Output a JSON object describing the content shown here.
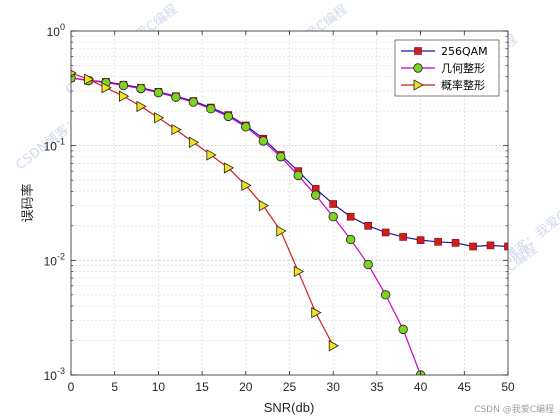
{
  "chart_data": {
    "type": "line",
    "xlabel": "SNR(db)",
    "ylabel": "误码率",
    "xlim": [
      0,
      50
    ],
    "ylim": [
      0.001,
      1
    ],
    "yscale": "log",
    "grid": true,
    "legend_position": "top-right",
    "x_ticks": [
      "0",
      "5",
      "10",
      "15",
      "20",
      "25",
      "30",
      "35",
      "40",
      "45",
      "50"
    ],
    "y_ticks": [
      {
        "base": "10",
        "exp": "0",
        "value": 1
      },
      {
        "base": "10",
        "exp": "-1",
        "value": 0.1
      },
      {
        "base": "10",
        "exp": "-2",
        "value": 0.01
      },
      {
        "base": "10",
        "exp": "-3",
        "value": 0.001
      }
    ],
    "series": [
      {
        "name": "256QAM",
        "color": "#1a1aa6",
        "marker": "square",
        "marker_color": "#cc1f1f",
        "x": [
          0,
          2,
          4,
          6,
          8,
          10,
          12,
          14,
          16,
          18,
          20,
          22,
          24,
          26,
          28,
          30,
          32,
          34,
          36,
          38,
          40,
          42,
          44,
          46,
          48,
          50
        ],
        "y": [
          0.39,
          0.37,
          0.36,
          0.34,
          0.32,
          0.295,
          0.27,
          0.245,
          0.215,
          0.185,
          0.15,
          0.115,
          0.083,
          0.06,
          0.042,
          0.031,
          0.024,
          0.02,
          0.0175,
          0.016,
          0.015,
          0.0145,
          0.0142,
          0.0132,
          0.0135,
          0.0132
        ]
      },
      {
        "name": "几何整形",
        "color": "#cc00cc",
        "marker": "circle",
        "marker_color": "#7ed321",
        "x": [
          0,
          2,
          4,
          6,
          8,
          10,
          12,
          14,
          16,
          18,
          20,
          22,
          24,
          26,
          28,
          30,
          32,
          34,
          36,
          38,
          40
        ],
        "y": [
          0.39,
          0.37,
          0.355,
          0.335,
          0.315,
          0.29,
          0.265,
          0.24,
          0.21,
          0.18,
          0.146,
          0.11,
          0.08,
          0.055,
          0.037,
          0.024,
          0.0152,
          0.0092,
          0.005,
          0.0025,
          0.001
        ]
      },
      {
        "name": "概率整形",
        "color": "#cc1f1f",
        "marker": "triangle-right",
        "marker_color": "#f2e21c",
        "x": [
          0,
          2,
          4,
          6,
          8,
          10,
          12,
          14,
          16,
          18,
          20,
          22,
          24,
          26,
          28,
          30
        ],
        "y": [
          0.43,
          0.38,
          0.32,
          0.27,
          0.22,
          0.175,
          0.138,
          0.107,
          0.083,
          0.064,
          0.045,
          0.03,
          0.018,
          0.008,
          0.0035,
          0.0018
        ]
      }
    ]
  },
  "watermark": {
    "text": "CSDN博客：我爱C编程",
    "footer": "CSDN @我爱C编程"
  }
}
